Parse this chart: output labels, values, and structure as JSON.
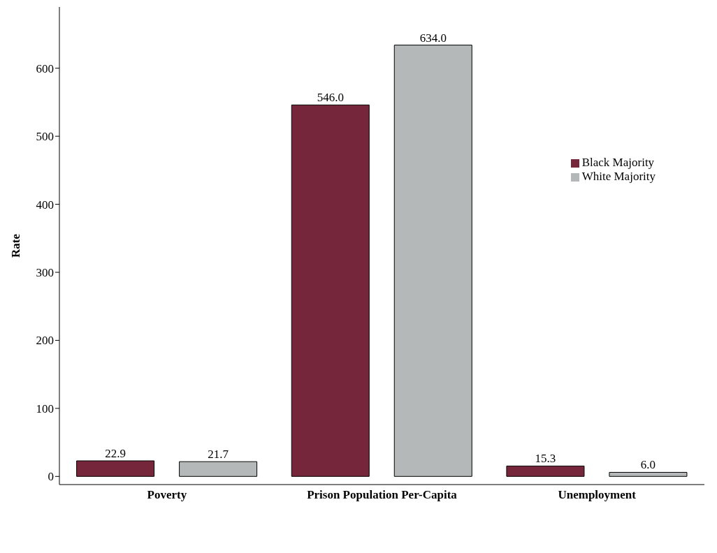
{
  "chart_data": {
    "type": "bar",
    "ylabel": "Rate",
    "categories": [
      "Poverty",
      "Prison Population Per-Capita",
      "Unemployment"
    ],
    "series": [
      {
        "name": "Black Majority",
        "color": "#76263a",
        "values": [
          22.9,
          546.0,
          15.3
        ],
        "value_labels": [
          "22.9",
          "546.0",
          "15.3"
        ]
      },
      {
        "name": "White Majority",
        "color": "#b4b8b9",
        "values": [
          21.7,
          634.0,
          6.0
        ],
        "value_labels": [
          "21.7",
          "634.0",
          "6.0"
        ]
      }
    ],
    "ylim": [
      -12,
      690
    ],
    "yticks": [
      0,
      100,
      200,
      300,
      400,
      500,
      600
    ],
    "legend": "top right"
  }
}
